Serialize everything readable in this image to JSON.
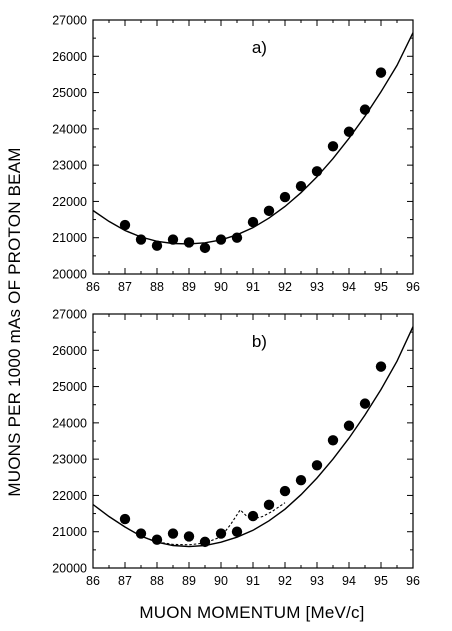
{
  "ylabel": "MUONS PER 1000 mAs OF PROTON BEAM",
  "xlabel": "MUON MOMENTUM [MeV/c]",
  "chart_data": [
    {
      "type": "scatter",
      "panel_label": "a)",
      "xlim": [
        86,
        96
      ],
      "ylim": [
        20000,
        27000
      ],
      "xticks": [
        86,
        87,
        88,
        89,
        90,
        91,
        92,
        93,
        94,
        95,
        96
      ],
      "yticks": [
        20000,
        21000,
        22000,
        23000,
        24000,
        25000,
        26000,
        27000
      ],
      "grid": false,
      "series": [
        {
          "kind": "points",
          "x": [
            87,
            87.5,
            88,
            88.5,
            89,
            89.5,
            90,
            90.5,
            91,
            91.5,
            92,
            92.5,
            93,
            93.5,
            94,
            94.5,
            95
          ],
          "y": [
            21350,
            20950,
            20780,
            20950,
            20870,
            20720,
            20950,
            21000,
            21430,
            21740,
            22120,
            22420,
            22830,
            23520,
            23920,
            24530,
            25550
          ]
        },
        {
          "kind": "curve",
          "x": [
            86,
            86.5,
            87,
            87.5,
            88,
            88.5,
            89,
            89.5,
            90,
            90.5,
            91,
            91.5,
            92,
            92.5,
            93,
            93.5,
            94,
            94.5,
            95,
            95.5,
            96
          ],
          "y": [
            21750,
            21450,
            21200,
            21020,
            20900,
            20840,
            20830,
            20860,
            20940,
            21080,
            21280,
            21540,
            21860,
            22240,
            22680,
            23180,
            23740,
            24350,
            25020,
            25750,
            26650
          ]
        }
      ]
    },
    {
      "type": "scatter",
      "panel_label": "b)",
      "xlim": [
        86,
        96
      ],
      "ylim": [
        20000,
        27000
      ],
      "xticks": [
        86,
        87,
        88,
        89,
        90,
        91,
        92,
        93,
        94,
        95,
        96
      ],
      "yticks": [
        20000,
        21000,
        22000,
        23000,
        24000,
        25000,
        26000,
        27000
      ],
      "grid": false,
      "series": [
        {
          "kind": "points",
          "x": [
            87,
            87.5,
            88,
            88.5,
            89,
            89.5,
            90,
            90.5,
            91,
            91.5,
            92,
            92.5,
            93,
            93.5,
            94,
            94.5,
            95
          ],
          "y": [
            21350,
            20950,
            20780,
            20950,
            20870,
            20720,
            20950,
            21000,
            21430,
            21740,
            22120,
            22420,
            22830,
            23520,
            23920,
            24530,
            25550
          ]
        },
        {
          "kind": "curve",
          "x": [
            86,
            86.5,
            87,
            87.5,
            88,
            88.5,
            89,
            89.5,
            90,
            90.5,
            91,
            91.5,
            92,
            92.5,
            93,
            93.5,
            94,
            94.5,
            95,
            95.5,
            96
          ],
          "y": [
            21750,
            21420,
            21130,
            20880,
            20710,
            20620,
            20590,
            20620,
            20710,
            20850,
            21040,
            21300,
            21620,
            22020,
            22480,
            23000,
            23580,
            24220,
            24920,
            25700,
            26650
          ]
        },
        {
          "kind": "dashed-curve",
          "x": [
            87.5,
            88,
            88.5,
            89,
            89.5,
            90,
            90.3,
            90.6,
            90.8,
            91.0,
            91.3,
            91.6,
            92
          ],
          "y": [
            20880,
            20720,
            20650,
            20640,
            20690,
            20860,
            21200,
            21600,
            21430,
            21350,
            21420,
            21560,
            21800
          ]
        }
      ]
    }
  ]
}
